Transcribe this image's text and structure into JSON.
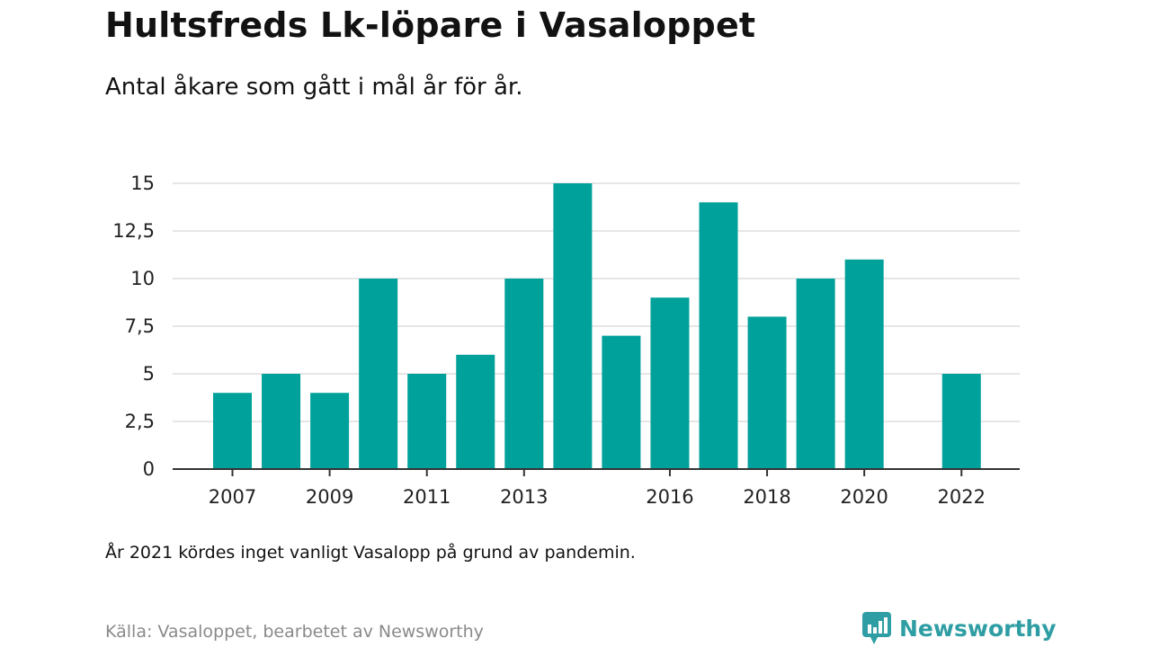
{
  "chart_data": {
    "type": "bar",
    "title": "Hultsfreds Lk-löpare i Vasaloppet",
    "subtitle": "Antal åkare som gått i mål år för år.",
    "xlabel": "",
    "ylabel": "",
    "categories": [
      "2007",
      "2008",
      "2009",
      "2010",
      "2011",
      "2012",
      "2013",
      "2014",
      "2015",
      "2016",
      "2017",
      "2018",
      "2019",
      "2020",
      "2021",
      "2022"
    ],
    "values": [
      4,
      5,
      4,
      10,
      5,
      6,
      10,
      15,
      7,
      9,
      14,
      8,
      10,
      11,
      null,
      5
    ],
    "x_tick_labels": [
      "2007",
      "2009",
      "2011",
      "2013",
      "2016",
      "2018",
      "2020",
      "2022"
    ],
    "y_ticks": [
      0,
      2.5,
      5,
      7.5,
      10,
      12.5,
      15
    ],
    "y_tick_labels": [
      "0",
      "2,5",
      "5",
      "7,5",
      "10",
      "12,5",
      "15"
    ],
    "ylim": [
      0,
      15
    ],
    "grid": true,
    "legend": "none",
    "bar_color": "#00a19a",
    "axis_color": "#333333",
    "grid_color": "#dddddd"
  },
  "footer": {
    "note": "År 2021 kördes inget vanligt Vasalopp på grund av pandemin.",
    "source": "Källa: Vasaloppet, bearbetet av Newsworthy",
    "brand": "Newsworthy",
    "brand_color": "#2f9ea4"
  }
}
